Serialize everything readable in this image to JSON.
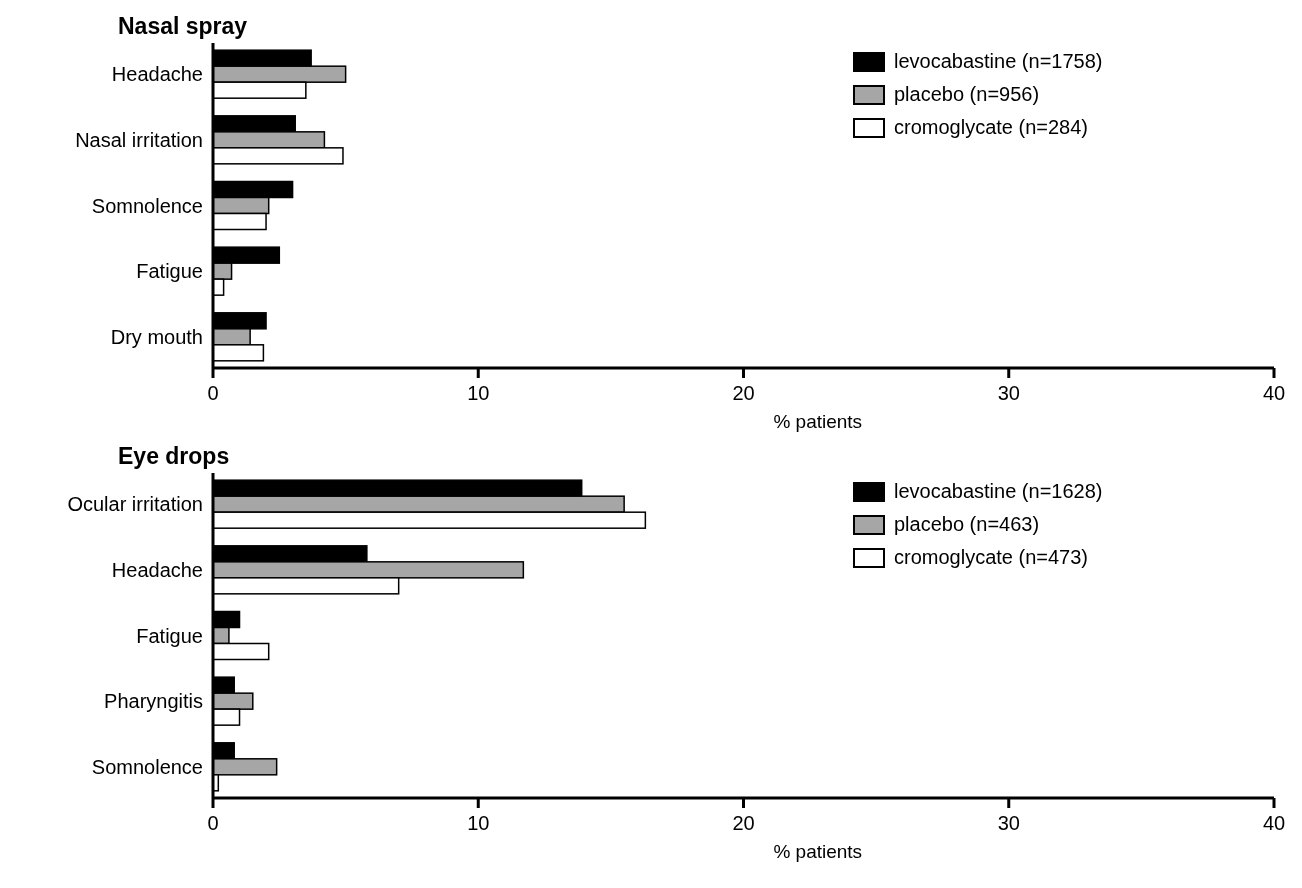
{
  "chart_data": [
    {
      "type": "bar",
      "orientation": "horizontal",
      "title": "Nasal spray",
      "xlabel": "% patients",
      "categories": [
        "Headache",
        "Nasal irritation",
        "Somnolence",
        "Fatigue",
        "Dry mouth"
      ],
      "xlim": [
        0,
        40
      ],
      "xticks": [
        0,
        10,
        20,
        30,
        40
      ],
      "legend": "top right",
      "series": [
        {
          "name": "levocabastine (n=1758)",
          "color": "#000000",
          "values": [
            3.7,
            3.1,
            3.0,
            2.5,
            2.0
          ]
        },
        {
          "name": "placebo (n=956)",
          "color": "#a6a6a6",
          "values": [
            5.0,
            4.2,
            2.1,
            0.7,
            1.4
          ]
        },
        {
          "name": "cromoglycate (n=284)",
          "color": "#ffffff",
          "values": [
            3.5,
            4.9,
            2.0,
            0.4,
            1.9
          ]
        }
      ]
    },
    {
      "type": "bar",
      "orientation": "horizontal",
      "title": "Eye drops",
      "xlabel": "% patients",
      "categories": [
        "Ocular irritation",
        "Headache",
        "Fatigue",
        "Pharyngitis",
        "Somnolence"
      ],
      "xlim": [
        0,
        40
      ],
      "xticks": [
        0,
        10,
        20,
        30,
        40
      ],
      "legend": "top right",
      "series": [
        {
          "name": "levocabastine (n=1628)",
          "color": "#000000",
          "values": [
            13.9,
            5.8,
            1.0,
            0.8,
            0.8
          ]
        },
        {
          "name": "placebo (n=463)",
          "color": "#a6a6a6",
          "values": [
            15.5,
            11.7,
            0.6,
            1.5,
            2.4
          ]
        },
        {
          "name": "cromoglycate (n=473)",
          "color": "#ffffff",
          "values": [
            16.3,
            7.0,
            2.1,
            1.0,
            0.2
          ]
        }
      ]
    }
  ]
}
